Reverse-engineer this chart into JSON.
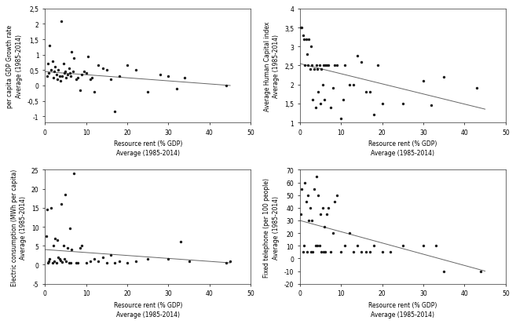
{
  "subplot1": {
    "ylabel": "per capita GDP Growth rate\nAverage (1985-2014)",
    "xlabel": "Resource rent (% GDP)\nAverage (1985-2014)",
    "xlim": [
      0,
      50
    ],
    "ylim": [
      -1.2,
      2.5
    ],
    "yticks": [
      -1,
      -0.5,
      0,
      0.5,
      1,
      1.5,
      2,
      2.5
    ],
    "xticks": [
      0,
      10,
      20,
      30,
      40,
      50
    ],
    "scatter_x": [
      0.5,
      0.8,
      1.0,
      1.2,
      1.5,
      1.8,
      2.0,
      2.2,
      2.5,
      2.8,
      3.0,
      3.2,
      3.5,
      3.8,
      4.0,
      4.2,
      4.5,
      4.8,
      5.0,
      5.2,
      5.5,
      5.8,
      6.0,
      6.2,
      6.5,
      6.8,
      7.0,
      7.5,
      8.0,
      8.5,
      9.0,
      9.5,
      10.0,
      10.5,
      11.0,
      11.5,
      12.0,
      13.0,
      14.0,
      15.0,
      16.0,
      17.0,
      18.0,
      20.0,
      22.0,
      25.0,
      28.0,
      30.0,
      32.0,
      34.0,
      44.0
    ],
    "scatter_y": [
      0.3,
      0.7,
      0.4,
      1.3,
      0.5,
      0.8,
      0.25,
      0.45,
      0.6,
      0.35,
      0.2,
      0.5,
      0.3,
      0.15,
      2.1,
      0.3,
      0.7,
      0.4,
      0.45,
      0.25,
      0.35,
      0.55,
      0.4,
      0.3,
      1.1,
      0.45,
      0.9,
      0.2,
      0.25,
      -0.15,
      0.35,
      0.45,
      0.4,
      0.95,
      0.2,
      0.25,
      -0.2,
      0.65,
      0.55,
      0.5,
      0.2,
      -0.85,
      0.3,
      0.65,
      0.5,
      -0.2,
      0.35,
      0.3,
      -0.1,
      0.25,
      0.0
    ],
    "trend_x": [
      0,
      45
    ],
    "trend_y": [
      0.45,
      0.0
    ]
  },
  "subplot2": {
    "ylabel": "Average Human Capital index\nAverage (1985-2014)",
    "xlabel": "Resource rent (% GDP)\nAverage (1985-2014)",
    "xlim": [
      0,
      50
    ],
    "ylim": [
      1.0,
      4.0
    ],
    "yticks": [
      1.0,
      1.5,
      2.0,
      2.5,
      3.0,
      3.5,
      4.0
    ],
    "xticks": [
      0,
      10,
      20,
      30,
      40,
      50
    ],
    "scatter_x": [
      0.3,
      0.5,
      0.8,
      1.0,
      1.2,
      1.5,
      1.8,
      2.0,
      2.2,
      2.5,
      2.8,
      3.0,
      3.2,
      3.5,
      3.8,
      4.0,
      4.2,
      4.5,
      4.8,
      5.0,
      5.2,
      5.5,
      5.8,
      6.0,
      6.2,
      6.5,
      7.0,
      7.5,
      8.0,
      8.5,
      9.0,
      10.0,
      10.5,
      11.0,
      12.0,
      13.0,
      14.0,
      15.0,
      16.0,
      17.0,
      18.0,
      19.0,
      20.0,
      25.0,
      30.0,
      32.0,
      35.0,
      43.0
    ],
    "scatter_y": [
      3.5,
      3.5,
      3.3,
      3.2,
      2.5,
      3.2,
      2.8,
      2.5,
      3.2,
      2.4,
      3.0,
      2.5,
      1.6,
      2.4,
      1.4,
      2.5,
      2.4,
      1.8,
      2.5,
      1.5,
      2.4,
      2.0,
      2.5,
      1.6,
      2.5,
      2.5,
      2.5,
      1.4,
      1.9,
      2.5,
      2.5,
      1.1,
      1.6,
      2.5,
      2.0,
      2.0,
      2.75,
      2.6,
      1.8,
      1.8,
      1.2,
      2.5,
      1.5,
      1.5,
      2.1,
      1.45,
      2.2,
      1.9
    ],
    "trend_x": [
      0,
      45
    ],
    "trend_y": [
      2.55,
      1.35
    ]
  },
  "subplot3": {
    "ylabel": "Electric consumption (MWh per capita)\nAverage (1985-2014)",
    "xlabel": "Resource rent (% GDP)\nAverage (1985-2014)",
    "xlim": [
      0,
      50
    ],
    "ylim": [
      -5,
      25
    ],
    "yticks": [
      -5,
      0,
      5,
      10,
      15,
      20,
      25
    ],
    "xticks": [
      0,
      10,
      20,
      30,
      40,
      50
    ],
    "scatter_x": [
      0.3,
      0.5,
      0.8,
      1.0,
      1.2,
      1.5,
      1.8,
      2.0,
      2.2,
      2.5,
      2.8,
      3.0,
      3.2,
      3.5,
      3.8,
      4.0,
      4.2,
      4.5,
      4.8,
      5.0,
      5.2,
      5.5,
      5.8,
      6.0,
      6.2,
      6.5,
      7.0,
      7.5,
      8.0,
      8.5,
      9.0,
      10.0,
      11.0,
      12.0,
      13.0,
      14.0,
      15.0,
      16.0,
      17.0,
      18.0,
      20.0,
      22.0,
      25.0,
      30.0,
      33.0,
      35.0,
      44.0,
      45.0
    ],
    "scatter_y": [
      7.5,
      14.5,
      0.5,
      1.0,
      1.5,
      15.0,
      0.5,
      5.0,
      1.0,
      7.0,
      0.5,
      6.5,
      2.0,
      1.5,
      1.2,
      16.0,
      0.8,
      5.0,
      1.5,
      18.5,
      1.0,
      4.5,
      0.5,
      9.5,
      0.5,
      4.0,
      24.0,
      0.5,
      0.5,
      4.5,
      5.0,
      0.5,
      1.0,
      1.5,
      1.0,
      2.0,
      0.5,
      2.5,
      0.5,
      1.0,
      0.5,
      1.0,
      1.5,
      1.5,
      6.0,
      1.0,
      0.5,
      1.0
    ],
    "trend_x": [
      0,
      45
    ],
    "trend_y": [
      4.0,
      0.5
    ]
  },
  "subplot4": {
    "ylabel": "Fixed telephone (per 100 people)\nAverage (1985-2014)",
    "xlabel": "Resource rent (% GDP)\nAverage (1985-2014)",
    "xlim": [
      0,
      50
    ],
    "ylim": [
      -20,
      70
    ],
    "yticks": [
      -20,
      -10,
      0,
      10,
      20,
      30,
      40,
      50,
      60,
      70
    ],
    "xticks": [
      0,
      10,
      20,
      30,
      40,
      50
    ],
    "scatter_x": [
      0.3,
      0.5,
      0.8,
      1.0,
      1.2,
      1.5,
      1.8,
      2.0,
      2.2,
      2.5,
      2.8,
      3.0,
      3.2,
      3.5,
      3.8,
      4.0,
      4.2,
      4.5,
      4.8,
      5.0,
      5.2,
      5.5,
      5.8,
      6.0,
      6.2,
      6.5,
      7.0,
      7.5,
      8.0,
      8.5,
      9.0,
      10.0,
      11.0,
      12.0,
      13.0,
      14.0,
      15.0,
      16.0,
      17.0,
      18.0,
      20.0,
      22.0,
      25.0,
      30.0,
      33.0,
      35.0,
      44.0
    ],
    "scatter_y": [
      35,
      55,
      5,
      10,
      60,
      45,
      5,
      50,
      30,
      40,
      5,
      30,
      5,
      55,
      10,
      65,
      10,
      50,
      10,
      35,
      5,
      40,
      5,
      25,
      5,
      35,
      40,
      5,
      20,
      45,
      50,
      5,
      10,
      20,
      5,
      10,
      5,
      5,
      5,
      10,
      5,
      5,
      10,
      10,
      10,
      -10,
      -10
    ],
    "trend_x": [
      0,
      45
    ],
    "trend_y": [
      30,
      -10
    ]
  },
  "marker_size": 6,
  "marker_color": "#1a1a1a",
  "line_color": "#666666",
  "bg_color": "#ffffff",
  "font_size": 5.5,
  "tick_font_size": 5.5,
  "label_font_size": 5.5
}
